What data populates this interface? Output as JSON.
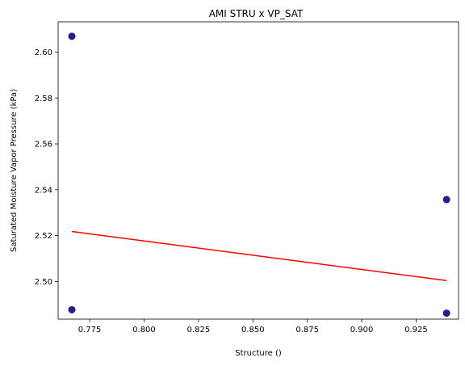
{
  "chart_data": {
    "type": "scatter",
    "title": "AMI STRU x VP_SAT",
    "xlabel": "Structure ()",
    "ylabel": "Saturated Moisture Vapor Pressure (kPa)",
    "xlim": [
      0.7605,
      0.9445
    ],
    "ylim": [
      2.4836,
      2.6132
    ],
    "xticks": [
      0.775,
      0.8,
      0.825,
      0.85,
      0.875,
      0.9,
      0.925
    ],
    "xtick_labels": [
      "0.775",
      "0.800",
      "0.825",
      "0.850",
      "0.875",
      "0.900",
      "0.925"
    ],
    "yticks": [
      2.5,
      2.52,
      2.54,
      2.56,
      2.58,
      2.6
    ],
    "ytick_labels": [
      "2.50",
      "2.52",
      "2.54",
      "2.56",
      "2.58",
      "2.60"
    ],
    "points": [
      {
        "x": 0.7668,
        "y": 2.6069
      },
      {
        "x": 0.7668,
        "y": 2.4877
      },
      {
        "x": 0.939,
        "y": 2.5357
      },
      {
        "x": 0.939,
        "y": 2.4862
      }
    ],
    "trend_line": {
      "x": [
        0.7668,
        0.939
      ],
      "y": [
        2.5218,
        2.5004
      ]
    },
    "grid": false,
    "colors": {
      "points": "#2e1a8f",
      "trend_line": "#ff0000",
      "axes": "#000000"
    }
  }
}
